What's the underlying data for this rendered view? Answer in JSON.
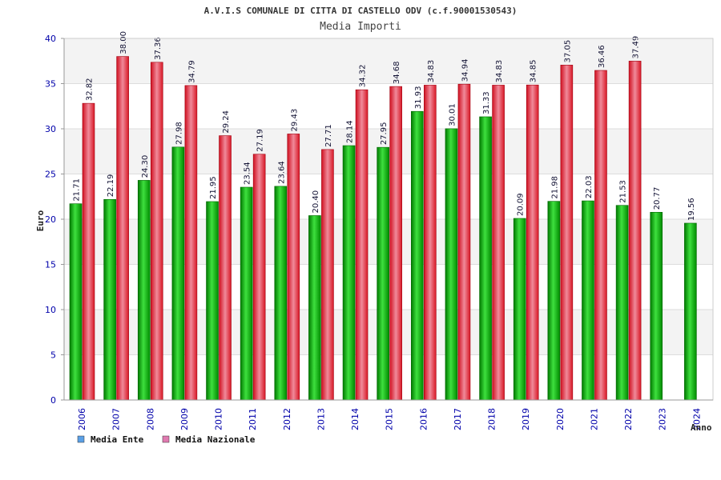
{
  "chart_data": {
    "type": "bar",
    "title": "A.V.I.S COMUNALE DI CITTA DI CASTELLO ODV (c.f.90001530543)",
    "subtitle": "Media Importi",
    "ylabel": "Euro",
    "xlabel": "Anno",
    "ylim": [
      0,
      40
    ],
    "yticks": [
      0,
      5,
      10,
      15,
      20,
      25,
      30,
      35,
      40
    ],
    "grid": true,
    "legend_position": "bottom-left",
    "categories": [
      "2006",
      "2007",
      "2008",
      "2009",
      "2010",
      "2011",
      "2012",
      "2013",
      "2014",
      "2015",
      "2016",
      "2017",
      "2018",
      "2019",
      "2020",
      "2021",
      "2022",
      "2023",
      "2024"
    ],
    "series": [
      {
        "name": "Media Ente",
        "bar_color": "#00b400",
        "legend_color": "#5aa0e6",
        "values": [
          21.71,
          22.19,
          24.3,
          27.98,
          21.95,
          23.54,
          23.64,
          20.4,
          28.14,
          27.95,
          31.93,
          30.01,
          31.33,
          20.09,
          21.98,
          22.03,
          21.53,
          20.77,
          19.56
        ],
        "labels": [
          "21.71",
          "22.19",
          "24.30",
          "27.98",
          "21.95",
          "23.54",
          "23.64",
          "20.40",
          "28.14",
          "27.95",
          "31.93",
          "30.01",
          "31.33",
          "20.09",
          "21.98",
          "22.03",
          "21.53",
          "20.77",
          "19.56"
        ]
      },
      {
        "name": "Media Nazionale",
        "bar_color": "#e8202a",
        "legend_color": "#e07ab0",
        "values": [
          32.82,
          38.0,
          37.36,
          34.79,
          29.24,
          27.19,
          29.43,
          27.71,
          34.32,
          34.68,
          34.83,
          34.94,
          34.83,
          34.85,
          37.05,
          36.46,
          37.49,
          null,
          null
        ],
        "labels": [
          "32.82",
          "38.00",
          "37.36",
          "34.79",
          "29.24",
          "27.19",
          "29.43",
          "27.71",
          "34.32",
          "34.68",
          "34.83",
          "34.94",
          "34.83",
          "34.85",
          "37.05",
          "36.46",
          "37.49",
          null,
          null
        ]
      }
    ]
  }
}
